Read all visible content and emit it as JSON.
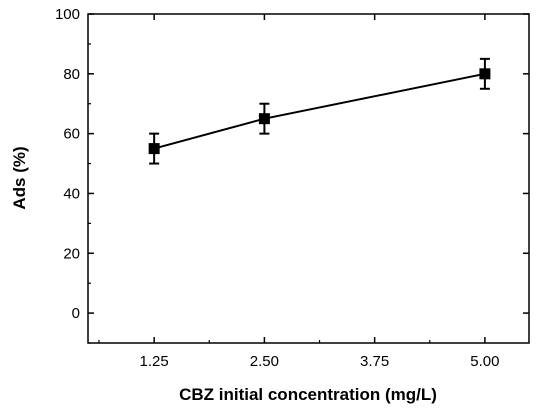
{
  "chart_data": {
    "type": "line",
    "xlabel": "CBZ initial concentration (mg/L)",
    "ylabel": "Ads (%)",
    "x_ticks": [
      "1.25",
      "2.50",
      "3.75",
      "5.00"
    ],
    "y_ticks": [
      "0",
      "20",
      "40",
      "60",
      "80",
      "100"
    ],
    "xlim": [
      0.5,
      5.5
    ],
    "ylim": [
      -10,
      100
    ],
    "grid": false,
    "legend": "none",
    "series": [
      {
        "x": [
          1.25,
          2.5,
          5.0
        ],
        "y": [
          55,
          65,
          80
        ],
        "error": [
          5,
          5,
          5
        ],
        "marker": "square",
        "color": "#000000"
      }
    ]
  }
}
